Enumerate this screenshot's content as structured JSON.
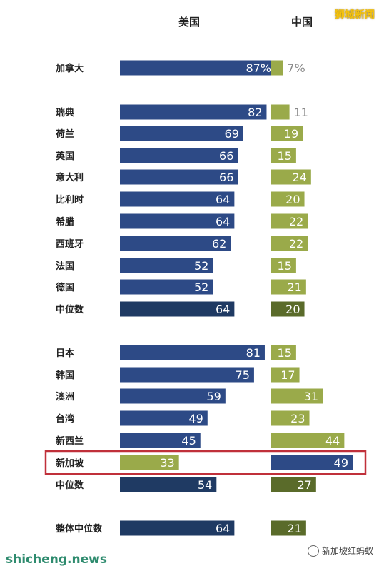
{
  "watermarks": {
    "top_right": "狮城新闻",
    "bottom_left": "shicheng.news",
    "bottom_right": "新加坡红蚂蚁"
  },
  "colors": {
    "usa_bar": "#2d4a86",
    "usa_median_bar": "#1f3a63",
    "china_bar": "#9aaa4a",
    "china_median_bar": "#5a6b2a",
    "highlight_border": "#c0303a",
    "label_light": "#ffffff",
    "label_out": "#888888"
  },
  "chart_data": {
    "type": "bar",
    "orientation": "horizontal",
    "series": [
      {
        "name": "美国",
        "values": [
          87,
          82,
          69,
          66,
          66,
          64,
          64,
          62,
          52,
          52,
          64,
          81,
          75,
          59,
          49,
          45,
          33,
          54,
          64
        ]
      },
      {
        "name": "中国",
        "values": [
          7,
          11,
          19,
          15,
          24,
          20,
          22,
          22,
          15,
          21,
          20,
          15,
          17,
          31,
          23,
          44,
          49,
          27,
          21
        ]
      }
    ],
    "categories": [
      "加拿大",
      "瑞典",
      "荷兰",
      "英国",
      "意大利",
      "比利时",
      "希腊",
      "西班牙",
      "法国",
      "德国",
      "中位数",
      "日本",
      "韩国",
      "澳洲",
      "台湾",
      "新西兰",
      "新加坡",
      "中位数",
      "整体中位数"
    ],
    "value_labels": {
      "美国": [
        "87%",
        "82",
        "69",
        "66",
        "66",
        "64",
        "64",
        "62",
        "52",
        "52",
        "64",
        "81",
        "75",
        "59",
        "49",
        "45",
        "33",
        "54",
        "64"
      ],
      "中国": [
        "7%",
        "11",
        "19",
        "15",
        "24",
        "20",
        "22",
        "22",
        "15",
        "21",
        "20",
        "15",
        "17",
        "31",
        "23",
        "44",
        "49",
        "27",
        "21"
      ]
    },
    "groups": [
      {
        "members": [
          "加拿大"
        ]
      },
      {
        "members": [
          "瑞典",
          "荷兰",
          "英国",
          "意大利",
          "比利时",
          "希腊",
          "西班牙",
          "法国",
          "德国",
          "中位数"
        ]
      },
      {
        "members": [
          "日本",
          "韩国",
          "澳洲",
          "台湾",
          "新西兰",
          "新加坡",
          "中位数"
        ]
      },
      {
        "members": [
          "整体中位数"
        ]
      }
    ],
    "median_rows": [
      "中位数",
      "整体中位数"
    ],
    "highlighted_row": "新加坡",
    "xlim": [
      0,
      100
    ],
    "grid": false
  }
}
